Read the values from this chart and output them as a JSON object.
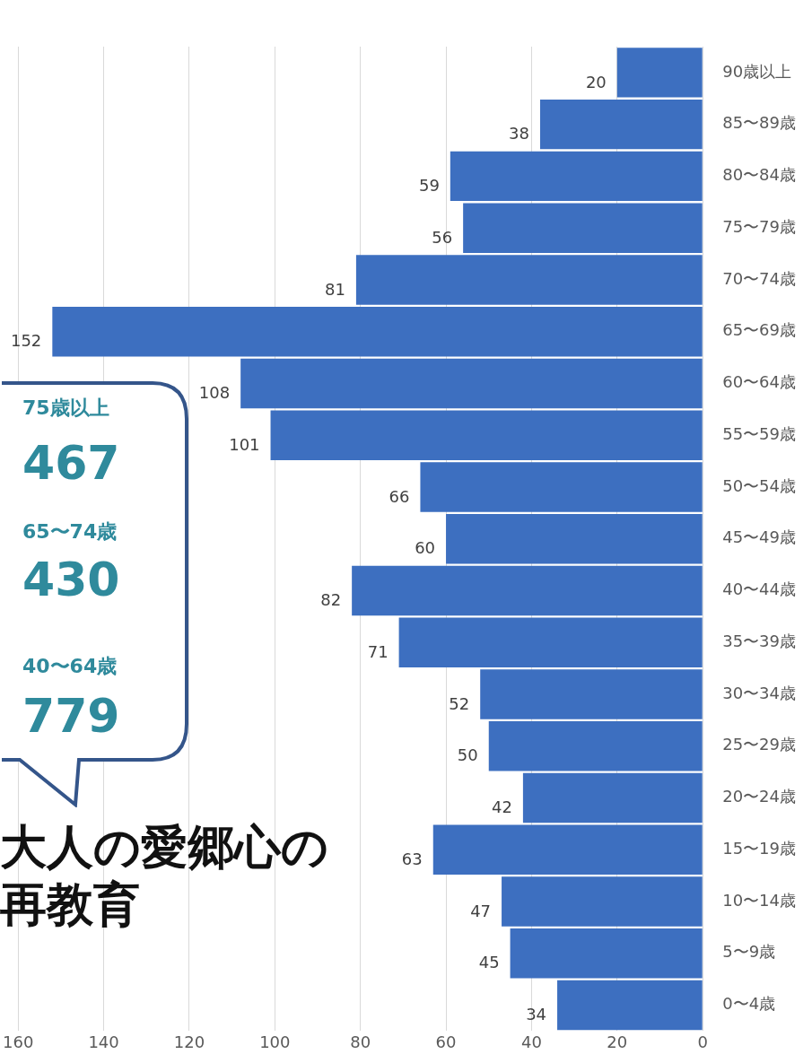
{
  "chart_data": {
    "type": "bar",
    "orientation": "horizontal",
    "title": "大人の愛郷心の再教育",
    "categories": [
      "90歳以上",
      "85〜89歳",
      "80〜84歳",
      "75〜79歳",
      "70〜74歳",
      "65〜69歳",
      "60〜64歳",
      "55〜59歳",
      "50〜54歳",
      "45〜49歳",
      "40〜44歳",
      "35〜39歳",
      "30〜34歳",
      "25〜29歳",
      "20〜24歳",
      "15〜19歳",
      "10〜14歳",
      "5〜9歳",
      "0〜4歳"
    ],
    "values": [
      20,
      38,
      59,
      56,
      81,
      152,
      108,
      101,
      66,
      60,
      82,
      71,
      52,
      50,
      42,
      63,
      47,
      45,
      34
    ],
    "color": "#3d6fc0",
    "data_labels": true,
    "legend": false,
    "grid": "x",
    "xlim": [
      160,
      0
    ],
    "xticks": [
      160,
      140,
      120,
      100,
      80,
      60,
      40,
      20,
      0
    ],
    "annotations": [
      "75歳以上",
      "467",
      "65〜74歳",
      "430",
      "40〜64歳",
      "779"
    ]
  }
}
